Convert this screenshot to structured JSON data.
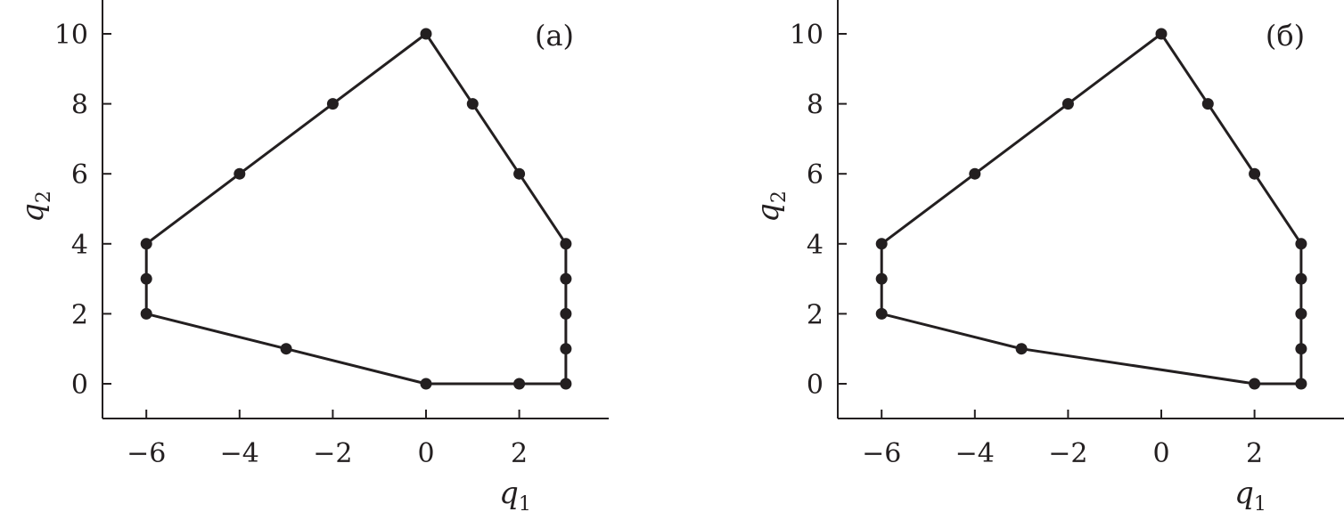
{
  "chart_data": [
    {
      "type": "line",
      "panel_label": "(a)",
      "xlabel": "q",
      "xlabel_sub": "1",
      "ylabel": "q",
      "ylabel_sub": "2",
      "xlim": [
        -6.9,
        3.9
      ],
      "ylim": [
        -1,
        11
      ],
      "x_ticks": [
        -6,
        -4,
        -2,
        0,
        2
      ],
      "x_tick_labels": [
        "−6",
        "−4",
        "−2",
        "0",
        "2"
      ],
      "y_ticks": [
        0,
        2,
        4,
        6,
        8,
        10
      ],
      "y_tick_labels": [
        "0",
        "2",
        "4",
        "6",
        "8",
        "10"
      ],
      "grid": false,
      "boundary": [
        [
          0,
          10
        ],
        [
          1,
          8
        ],
        [
          2,
          6
        ],
        [
          3,
          4
        ],
        [
          3,
          3
        ],
        [
          3,
          2
        ],
        [
          3,
          1
        ],
        [
          3,
          0
        ],
        [
          2,
          0
        ],
        [
          0,
          0
        ],
        [
          -3,
          1
        ],
        [
          -6,
          2
        ],
        [
          -6,
          3
        ],
        [
          -6,
          4
        ],
        [
          -4,
          6
        ],
        [
          -2,
          8
        ],
        [
          0,
          10
        ]
      ],
      "points": [
        [
          0,
          10
        ],
        [
          1,
          8
        ],
        [
          2,
          6
        ],
        [
          3,
          4
        ],
        [
          3,
          3
        ],
        [
          3,
          2
        ],
        [
          3,
          1
        ],
        [
          3,
          0
        ],
        [
          2,
          0
        ],
        [
          0,
          0
        ],
        [
          -3,
          1
        ],
        [
          -6,
          2
        ],
        [
          -6,
          3
        ],
        [
          -6,
          4
        ],
        [
          -4,
          6
        ],
        [
          -2,
          8
        ]
      ]
    },
    {
      "type": "line",
      "panel_label": "(б)",
      "xlabel": "q",
      "xlabel_sub": "1",
      "ylabel": "q",
      "ylabel_sub": "2",
      "xlim": [
        -6.9,
        3.9
      ],
      "ylim": [
        -1,
        11
      ],
      "x_ticks": [
        -6,
        -4,
        -2,
        0,
        2
      ],
      "x_tick_labels": [
        "−6",
        "−4",
        "−2",
        "0",
        "2"
      ],
      "y_ticks": [
        0,
        2,
        4,
        6,
        8,
        10
      ],
      "y_tick_labels": [
        "0",
        "2",
        "4",
        "6",
        "8",
        "10"
      ],
      "grid": false,
      "boundary": [
        [
          0,
          10
        ],
        [
          1,
          8
        ],
        [
          2,
          6
        ],
        [
          3,
          4
        ],
        [
          3,
          3
        ],
        [
          3,
          2
        ],
        [
          3,
          1
        ],
        [
          3,
          0
        ],
        [
          2,
          0
        ],
        [
          -3,
          1
        ],
        [
          -6,
          2
        ],
        [
          -6,
          3
        ],
        [
          -6,
          4
        ],
        [
          -4,
          6
        ],
        [
          -2,
          8
        ],
        [
          0,
          10
        ]
      ],
      "points": [
        [
          0,
          10
        ],
        [
          1,
          8
        ],
        [
          2,
          6
        ],
        [
          3,
          4
        ],
        [
          3,
          3
        ],
        [
          3,
          2
        ],
        [
          3,
          1
        ],
        [
          3,
          0
        ],
        [
          2,
          0
        ],
        [
          -3,
          1
        ],
        [
          -6,
          2
        ],
        [
          -6,
          3
        ],
        [
          -6,
          4
        ],
        [
          -4,
          6
        ],
        [
          -2,
          8
        ]
      ]
    }
  ]
}
